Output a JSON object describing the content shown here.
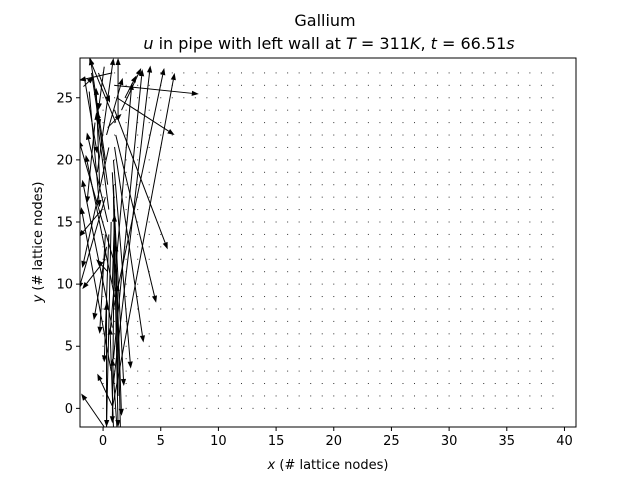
{
  "chart_data": {
    "type": "quiver",
    "title": "Gallium",
    "subtitle_parts": [
      "u",
      " in pipe with left wall at ",
      "T",
      " = 311",
      "K",
      ", ",
      "t",
      " = 66.51",
      "s"
    ],
    "xlabel_parts": [
      "x",
      " (# lattice nodes)"
    ],
    "ylabel_parts": [
      "y",
      " (# lattice nodes)"
    ],
    "xlim": [
      -2,
      41
    ],
    "ylim": [
      -1.5,
      28.2
    ],
    "xticks": [
      0,
      5,
      10,
      15,
      20,
      25,
      30,
      35,
      40
    ],
    "yticks": [
      0,
      5,
      10,
      15,
      20,
      25
    ],
    "grid": false,
    "field_grid": {
      "x_start": 0,
      "x_end": 39,
      "y_start": 0,
      "y_end": 27,
      "step": 1
    },
    "arrows": [
      [
        0.8,
        27,
        -2.1,
        26.4
      ],
      [
        1.0,
        26,
        8.3,
        25.3
      ],
      [
        1.2,
        25,
        6.2,
        22.0
      ],
      [
        1.0,
        24,
        5.6,
        12.8
      ],
      [
        1.1,
        22,
        4.6,
        8.5
      ],
      [
        1.0,
        21,
        3.5,
        5.3
      ],
      [
        0.9,
        20,
        2.4,
        3.2
      ],
      [
        0.8,
        19,
        1.8,
        1.8
      ],
      [
        0.9,
        18,
        1.6,
        -0.6
      ],
      [
        0.9,
        17,
        1.3,
        -1.5
      ],
      [
        1.0,
        16,
        0.8,
        -1.2
      ],
      [
        0.7,
        15,
        0.3,
        -1.5
      ],
      [
        0.5,
        14,
        0.1,
        3.7
      ],
      [
        0.3,
        13,
        -0.8,
        7.1
      ],
      [
        0.2,
        12,
        -1.8,
        9.6
      ],
      [
        0.4,
        11,
        -0.6,
        12.0
      ],
      [
        0.8,
        10,
        1.0,
        15.6
      ],
      [
        0.9,
        8,
        5.3,
        27.4
      ],
      [
        0.6,
        6,
        2.5,
        26.2
      ],
      [
        0.9,
        4,
        3.4,
        27.3
      ],
      [
        0.9,
        2,
        4.1,
        27.6
      ],
      [
        0.8,
        0,
        6.2,
        27.0
      ],
      [
        0.4,
        18,
        -0.5,
        23.9
      ],
      [
        -0.3,
        18,
        -0.6,
        25.8
      ],
      [
        0.5,
        16,
        -0.6,
        23.8
      ],
      [
        0.2,
        20,
        -1.1,
        28.2
      ],
      [
        1.1,
        23,
        -1.2,
        28.2
      ],
      [
        1.3,
        23.5,
        1.3,
        28.2
      ],
      [
        0.4,
        15,
        -1.4,
        22.2
      ],
      [
        0.3,
        22,
        1.7,
        26.6
      ],
      [
        -0.5,
        19,
        0.9,
        28.2
      ],
      [
        -1.2,
        25.5,
        -0.3,
        16.2
      ],
      [
        0.7,
        3,
        -1.9,
        16.2
      ],
      [
        0.8,
        6.5,
        -1.8,
        18.4
      ],
      [
        1.0,
        9,
        -1.5,
        20.4
      ],
      [
        1.2,
        11,
        -2.1,
        21.6
      ],
      [
        0.5,
        21,
        -1.8,
        11.3
      ],
      [
        0.2,
        17,
        -2.1,
        9.6
      ],
      [
        -0.1,
        16,
        -2.1,
        13.8
      ],
      [
        -0.7,
        23,
        -1.4,
        16.5
      ],
      [
        -1.0,
        27,
        -0.3,
        22.7
      ],
      [
        -1.6,
        26.5,
        -0.5,
        20.5
      ],
      [
        -0.4,
        27,
        0.6,
        24.6
      ],
      [
        0.1,
        -1.5,
        -1.9,
        1.2
      ],
      [
        0.3,
        -1.5,
        0.3,
        8.5
      ],
      [
        1.5,
        -1.5,
        1.2,
        10.0
      ],
      [
        0.9,
        -1.5,
        0.6,
        6.5
      ],
      [
        1.2,
        -1.5,
        0.8,
        4.0
      ],
      [
        0.8,
        0.2,
        -0.5,
        2.8
      ],
      [
        1.3,
        1.0,
        1.1,
        13.2
      ],
      [
        1.6,
        24.0,
        3.3,
        27.4
      ],
      [
        1.9,
        25.0,
        2.9,
        26.8
      ],
      [
        0.4,
        22.6,
        1.6,
        23.7
      ],
      [
        0.1,
        27.5,
        -0.4,
        24.0
      ],
      [
        -1.7,
        25.9,
        -0.8,
        26.7
      ],
      [
        0.2,
        14.0,
        -0.3,
        6.0
      ]
    ]
  }
}
